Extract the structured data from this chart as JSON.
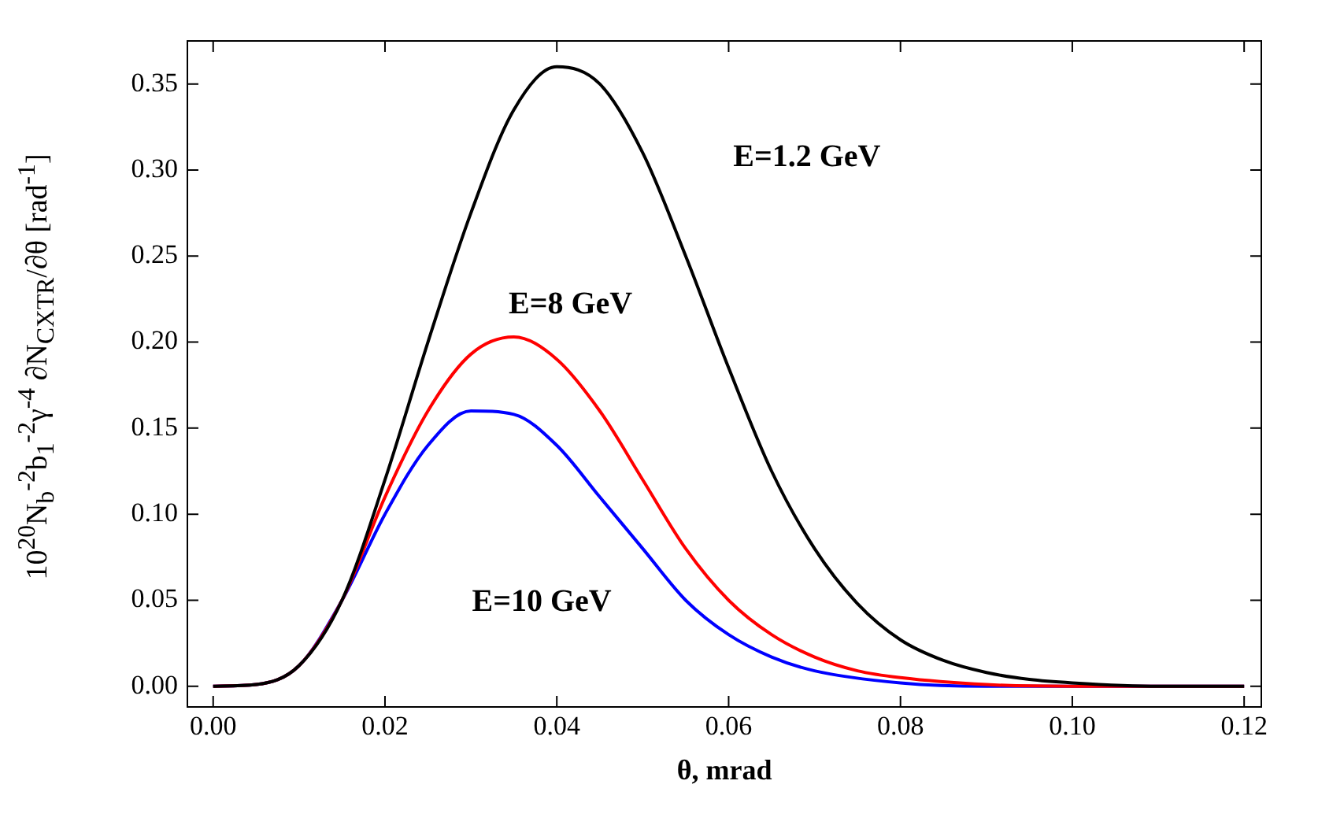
{
  "chart_data": {
    "type": "line",
    "xlabel": "θ, mrad",
    "ylabel": "10$^{20}$N$_{b}$$^{-2}$b$_{1}$$^{-2}$γ$^{-4}$ ∂N$_{CXTR}$/∂θ [rad$^{-1}$]",
    "xlim": [
      -0.003,
      0.122
    ],
    "ylim": [
      -0.012,
      0.375
    ],
    "xticks": [
      {
        "value": 0,
        "label": "0.00"
      },
      {
        "value": 0.02,
        "label": "0.02"
      },
      {
        "value": 0.04,
        "label": "0.04"
      },
      {
        "value": 0.06,
        "label": "0.06"
      },
      {
        "value": 0.08,
        "label": "0.08"
      },
      {
        "value": 0.1,
        "label": "0.10"
      },
      {
        "value": 0.12,
        "label": "0.12"
      }
    ],
    "yticks": [
      {
        "value": 0,
        "label": "0.00"
      },
      {
        "value": 0.05,
        "label": "0.05"
      },
      {
        "value": 0.1,
        "label": "0.10"
      },
      {
        "value": 0.15,
        "label": "0.15"
      },
      {
        "value": 0.2,
        "label": "0.20"
      },
      {
        "value": 0.25,
        "label": "0.25"
      },
      {
        "value": 0.3,
        "label": "0.30"
      },
      {
        "value": 0.35,
        "label": "0.35"
      }
    ],
    "grid": false,
    "legend": false,
    "marker": "none",
    "line_style": "solid",
    "series": [
      {
        "name": "E=1.2 GeV",
        "color": "#000000",
        "x": [
          0,
          0.005,
          0.01,
          0.015,
          0.02,
          0.025,
          0.03,
          0.035,
          0.04,
          0.045,
          0.05,
          0.055,
          0.06,
          0.065,
          0.07,
          0.075,
          0.08,
          0.085,
          0.09,
          0.095,
          0.1,
          0.11,
          0.12
        ],
        "values": [
          0,
          0.001,
          0.012,
          0.05,
          0.12,
          0.2,
          0.275,
          0.335,
          0.36,
          0.35,
          0.31,
          0.25,
          0.185,
          0.125,
          0.08,
          0.048,
          0.027,
          0.015,
          0.008,
          0.004,
          0.002,
          0,
          0
        ]
      },
      {
        "name": "E=8 GeV",
        "color": "#ff0000",
        "x": [
          0,
          0.005,
          0.01,
          0.015,
          0.02,
          0.025,
          0.03,
          0.035,
          0.04,
          0.045,
          0.05,
          0.055,
          0.06,
          0.065,
          0.07,
          0.075,
          0.08,
          0.09,
          0.1,
          0.12
        ],
        "values": [
          0,
          0.001,
          0.012,
          0.05,
          0.11,
          0.16,
          0.193,
          0.203,
          0.19,
          0.16,
          0.12,
          0.08,
          0.05,
          0.03,
          0.017,
          0.009,
          0.005,
          0.001,
          0,
          0
        ]
      },
      {
        "name": "E=10 GeV",
        "color": "#0000ff",
        "x": [
          0,
          0.005,
          0.01,
          0.015,
          0.02,
          0.025,
          0.03,
          0.035,
          0.04,
          0.045,
          0.05,
          0.055,
          0.06,
          0.065,
          0.07,
          0.08,
          0.09,
          0.1,
          0.12
        ],
        "values": [
          0,
          0.001,
          0.012,
          0.05,
          0.1,
          0.14,
          0.16,
          0.158,
          0.14,
          0.11,
          0.08,
          0.05,
          0.03,
          0.017,
          0.009,
          0.002,
          0,
          0,
          0
        ]
      }
    ]
  }
}
